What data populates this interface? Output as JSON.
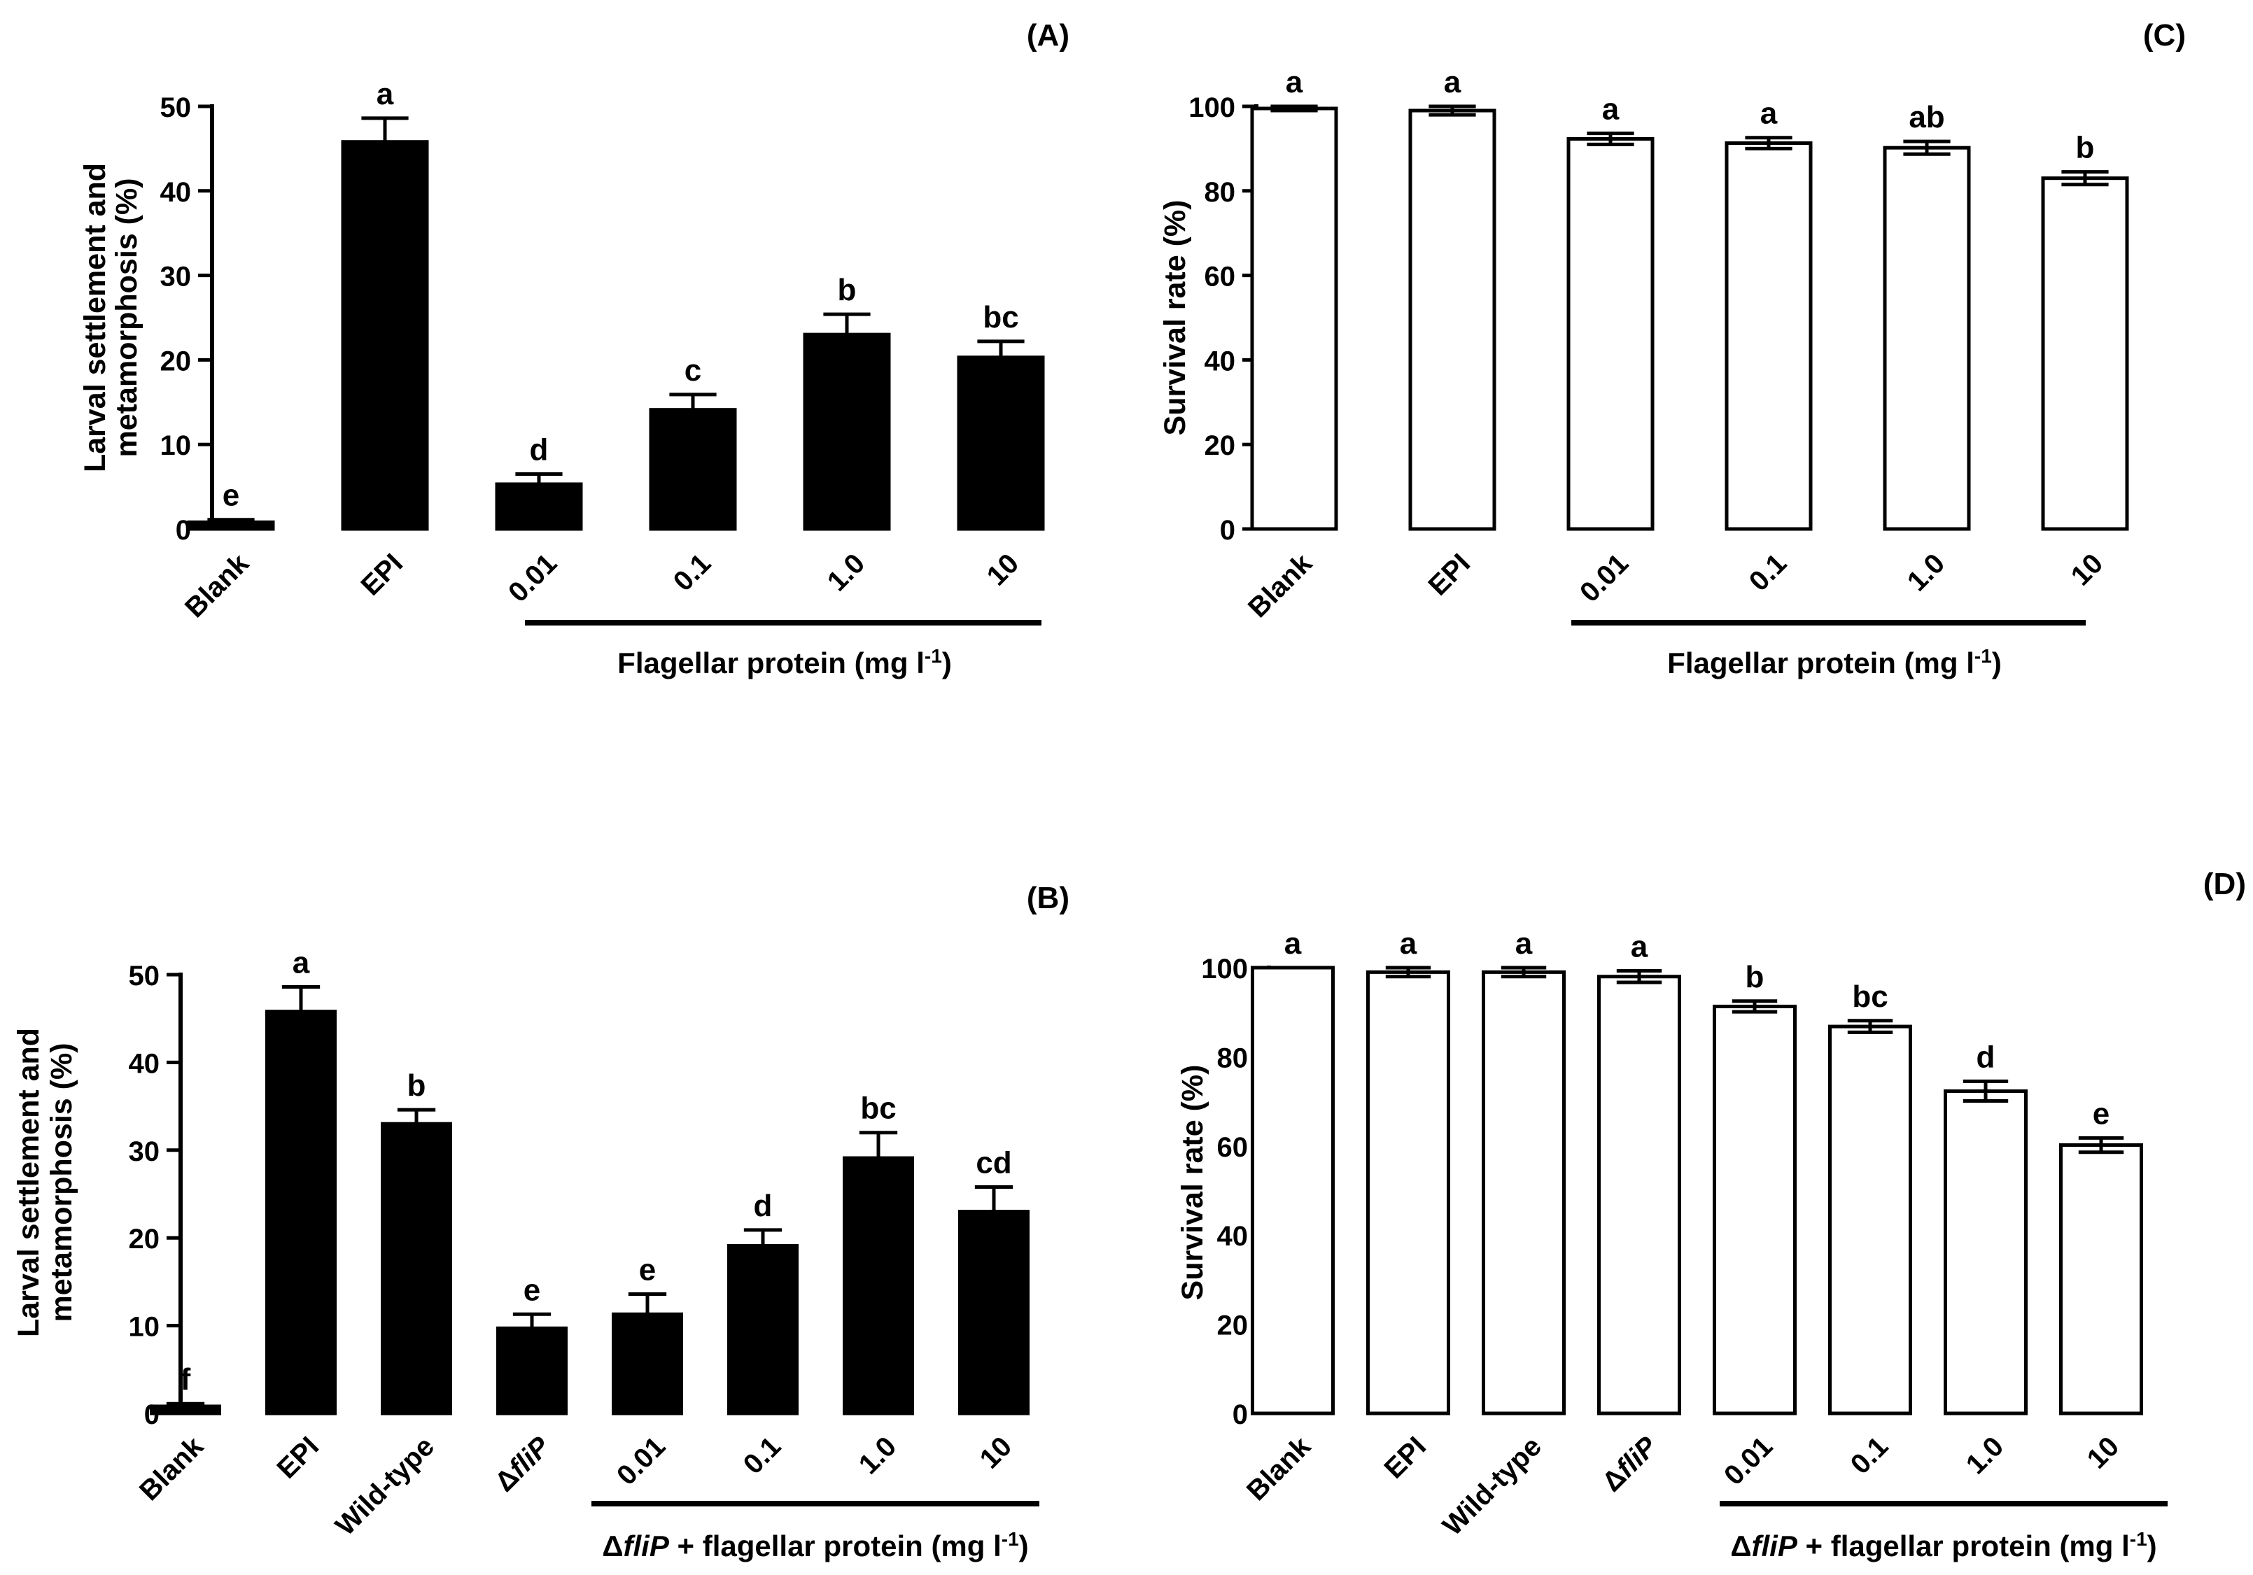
{
  "figure": {
    "panels": [
      "A",
      "B",
      "C",
      "D"
    ]
  },
  "chart_data": [
    {
      "id": "A",
      "panel_label": "(A)",
      "type": "bar",
      "bar_fill": "#000000",
      "ylabel_lines": [
        "Larval settlement and",
        "metamorphosis (%)"
      ],
      "ylim": [
        0,
        50
      ],
      "yticks": [
        0,
        10,
        20,
        30,
        40,
        50
      ],
      "categories": [
        "Blank",
        "EPI",
        "0.01",
        "0.1",
        "1.0",
        "10"
      ],
      "values": [
        0.8,
        45.8,
        5.3,
        14.1,
        23.0,
        20.3
      ],
      "errors": [
        0.3,
        2.8,
        1.2,
        1.8,
        2.4,
        1.9
      ],
      "significance": [
        "e",
        "a",
        "d",
        "c",
        "b",
        "bc"
      ],
      "group": {
        "start": 2,
        "end": 5,
        "label_prefix": "",
        "label_italic": "",
        "label_main": "Flagellar protein (mg l",
        "label_sup": "-1",
        "label_suffix": ")"
      }
    },
    {
      "id": "B",
      "panel_label": "(B)",
      "type": "bar",
      "bar_fill": "#000000",
      "ylabel_lines": [
        "Larval settlement and",
        "metamorphosis  (%)"
      ],
      "ylim": [
        0,
        50
      ],
      "yticks": [
        0,
        10,
        20,
        30,
        40,
        50
      ],
      "categories": [
        "Blank",
        "EPI",
        "Wild-type",
        "ΔfliP",
        "0.01",
        "0.1",
        "1.0",
        "10"
      ],
      "values": [
        0.8,
        45.8,
        33.0,
        9.7,
        11.3,
        19.1,
        29.1,
        23.0
      ],
      "errors": [
        0.3,
        2.8,
        1.6,
        1.6,
        2.3,
        1.8,
        2.9,
        2.8
      ],
      "significance": [
        "f",
        "a",
        "b",
        "e",
        "e",
        "d",
        "bc",
        "cd"
      ],
      "group": {
        "start": 4,
        "end": 7,
        "label_prefix": "Δ",
        "label_italic": "fliP",
        "label_main": " + flagellar protein (mg l",
        "label_sup": "-1",
        "label_suffix": ")"
      }
    },
    {
      "id": "C",
      "panel_label": "(C)",
      "type": "bar",
      "bar_fill": "#ffffff",
      "ylabel_lines": [
        "Survival rate (%)"
      ],
      "ylim": [
        0,
        100
      ],
      "yticks": [
        0,
        20,
        40,
        60,
        80,
        100
      ],
      "categories": [
        "Blank",
        "EPI",
        "0.01",
        "0.1",
        "1.0",
        "10"
      ],
      "values": [
        99.5,
        99.0,
        92.3,
        91.3,
        90.2,
        83.0
      ],
      "errors": [
        0.5,
        1.0,
        1.3,
        1.3,
        1.5,
        1.5
      ],
      "significance": [
        "a",
        "a",
        "a",
        "a",
        "ab",
        "b"
      ],
      "group": {
        "start": 2,
        "end": 5,
        "label_prefix": "",
        "label_italic": "",
        "label_main": "Flagellar protein (mg l",
        "label_sup": "-1",
        "label_suffix": ")"
      }
    },
    {
      "id": "D",
      "panel_label": "(D)",
      "type": "bar",
      "bar_fill": "#ffffff",
      "ylabel_lines": [
        "Survival rate (%)"
      ],
      "ylim": [
        0,
        100
      ],
      "yticks": [
        0,
        20,
        40,
        60,
        80,
        100
      ],
      "categories": [
        "Blank",
        "EPI",
        "Wild-type",
        "ΔfliP",
        "0.01",
        "0.1",
        "1.0",
        "10"
      ],
      "values": [
        100.0,
        99.0,
        99.0,
        98.0,
        91.3,
        86.8,
        72.3,
        60.2
      ],
      "errors": [
        0.0,
        1.0,
        1.0,
        1.3,
        1.2,
        1.3,
        2.2,
        1.6
      ],
      "significance": [
        "a",
        "a",
        "a",
        "a",
        "b",
        "bc",
        "d",
        "e"
      ],
      "group": {
        "start": 4,
        "end": 7,
        "label_prefix": "Δ",
        "label_italic": "fliP",
        "label_main": " + flagellar protein (mg l",
        "label_sup": "-1",
        "label_suffix": ")"
      }
    }
  ]
}
